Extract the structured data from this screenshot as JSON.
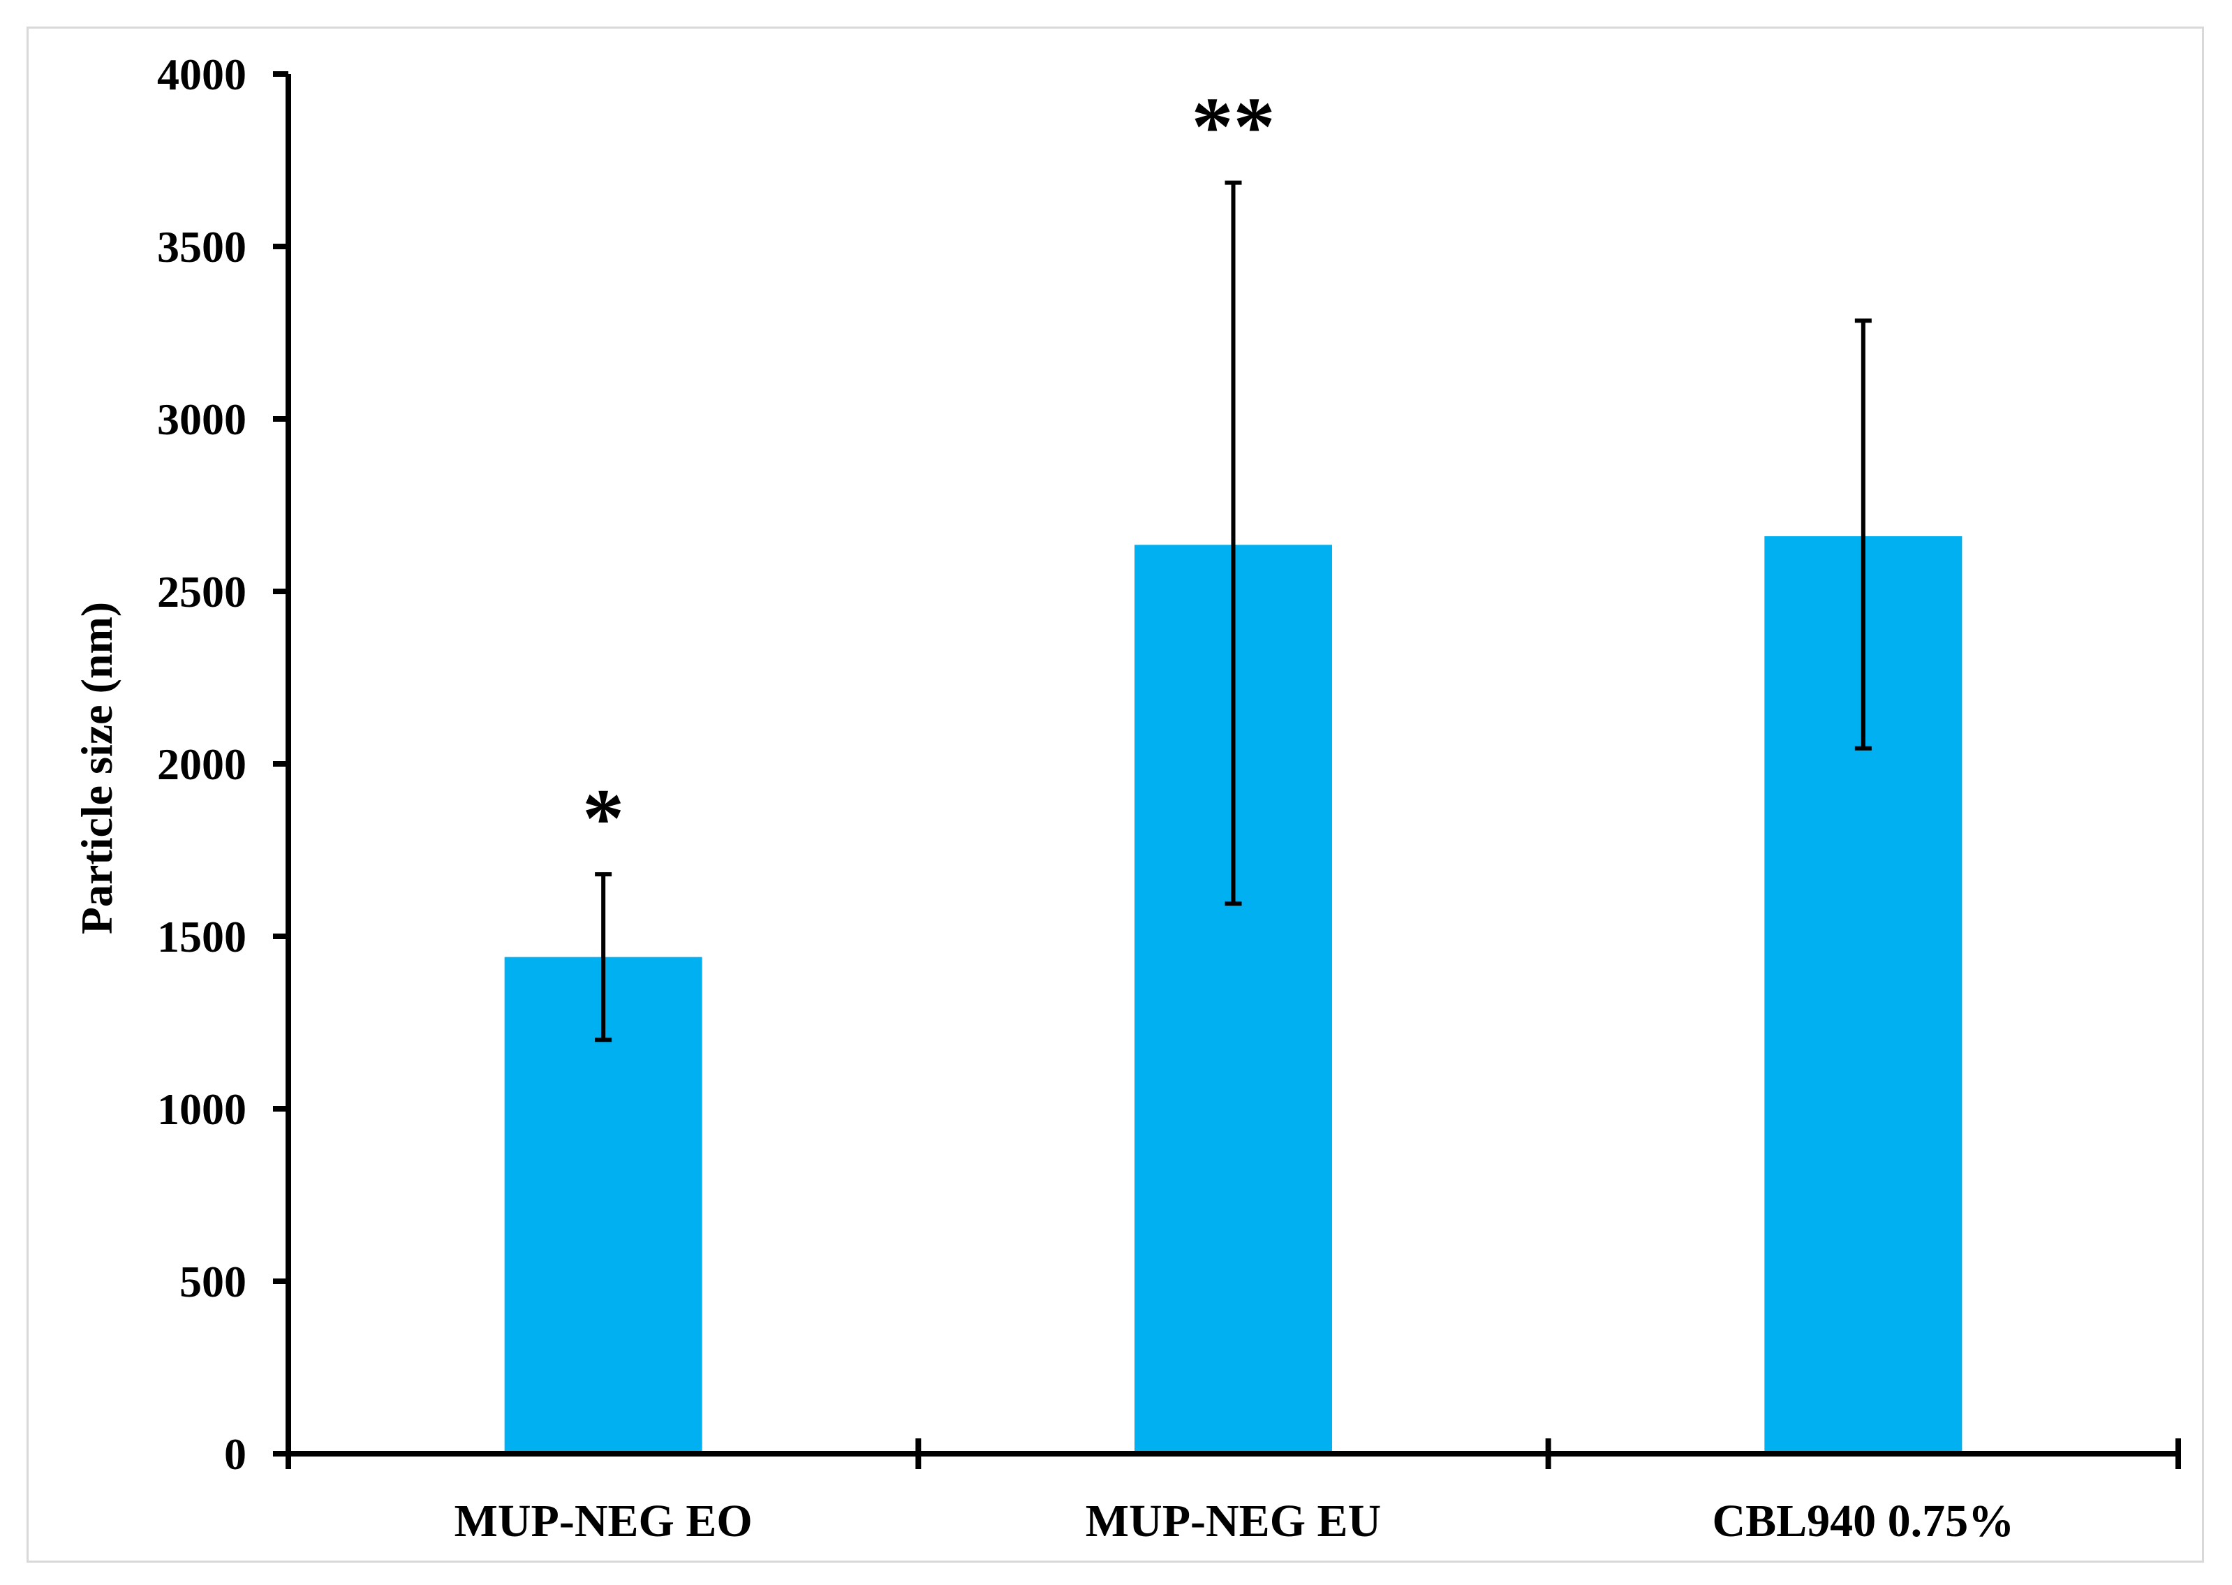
{
  "chart_data": {
    "type": "bar",
    "title": "",
    "xlabel": "",
    "ylabel": "Particle size (nm)",
    "ylim": [
      0,
      4000
    ],
    "yticks": [
      0,
      500,
      1000,
      1500,
      2000,
      2500,
      3000,
      3500,
      4000
    ],
    "grid": false,
    "categories": [
      "MUP-NEG EO",
      "MUP-NEG EU",
      "CBL940 0.75%"
    ],
    "values": [
      1440,
      2635,
      2660
    ],
    "error_low": [
      1200,
      1595,
      2045
    ],
    "error_high": [
      1680,
      3685,
      3285
    ],
    "annotations": [
      "*",
      "**",
      ""
    ],
    "bar_color": "#00b0f0"
  }
}
